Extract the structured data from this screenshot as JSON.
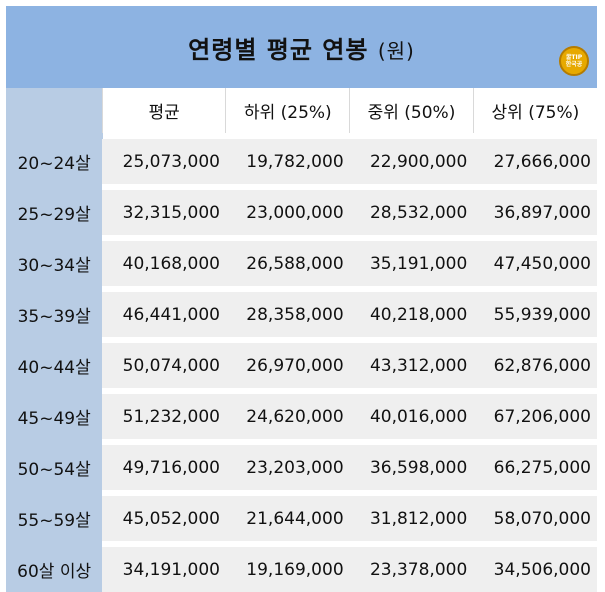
{
  "chart_data": {
    "type": "table",
    "title": "연령별 평균 연봉",
    "unit": "(원)",
    "columns": [
      "평균",
      "하위 (25%)",
      "중위 (50%)",
      "상위 (75%)"
    ],
    "rows": [
      {
        "label": "20~24살",
        "values": [
          "25,073,000",
          "19,782,000",
          "22,900,000",
          "27,666,000"
        ]
      },
      {
        "label": "25~29살",
        "values": [
          "32,315,000",
          "23,000,000",
          "28,532,000",
          "36,897,000"
        ]
      },
      {
        "label": "30~34살",
        "values": [
          "40,168,000",
          "26,588,000",
          "35,191,000",
          "47,450,000"
        ]
      },
      {
        "label": "35~39살",
        "values": [
          "46,441,000",
          "28,358,000",
          "40,218,000",
          "55,939,000"
        ]
      },
      {
        "label": "40~44살",
        "values": [
          "50,074,000",
          "26,970,000",
          "43,312,000",
          "62,876,000"
        ]
      },
      {
        "label": "45~49살",
        "values": [
          "51,232,000",
          "24,620,000",
          "40,016,000",
          "67,206,000"
        ]
      },
      {
        "label": "50~54살",
        "values": [
          "49,716,000",
          "23,203,000",
          "36,598,000",
          "66,275,000"
        ]
      },
      {
        "label": "55~59살",
        "values": [
          "45,052,000",
          "21,644,000",
          "31,812,000",
          "58,070,000"
        ]
      },
      {
        "label": "60살 이상",
        "values": [
          "34,191,000",
          "19,169,000",
          "23,378,000",
          "34,506,000"
        ]
      }
    ]
  },
  "colors": {
    "title_bg": "#8db3e2",
    "row_header_bg": "#b8cce4",
    "cell_bg": "#efefef",
    "logo": "#e7a900"
  },
  "logo": {
    "icon": "tip-badge-icon",
    "line1": "꿀TIP",
    "line2": "한국공"
  }
}
